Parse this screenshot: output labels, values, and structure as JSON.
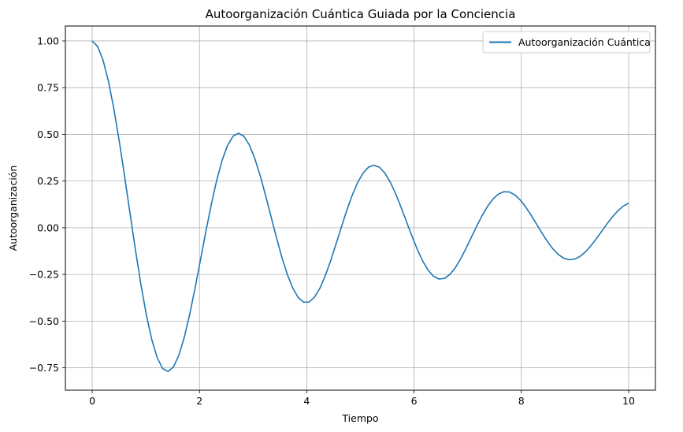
{
  "chart_data": {
    "type": "line",
    "title": "Autoorganización Cuántica Guiada por la Conciencia",
    "xlabel": "Tiempo",
    "ylabel": "Autoorganización",
    "xlim": [
      -0.5,
      10.5
    ],
    "ylim": [
      -0.87,
      1.08
    ],
    "xticks": [
      0,
      2,
      4,
      6,
      8,
      10
    ],
    "xtick_labels": [
      "0",
      "2",
      "4",
      "6",
      "8",
      "10"
    ],
    "yticks": [
      -0.75,
      -0.5,
      -0.25,
      0.0,
      0.25,
      0.5,
      0.75,
      1.0
    ],
    "ytick_labels": [
      "−0.75",
      "−0.50",
      "−0.25",
      "0.00",
      "0.25",
      "0.50",
      "0.75",
      "1.00"
    ],
    "grid": true,
    "legend_position": "top-right",
    "series": [
      {
        "name": "Autoorganización Cuántica",
        "color": "#1f77b4",
        "x": [
          0.0,
          0.101,
          0.202,
          0.303,
          0.404,
          0.505,
          0.606,
          0.707,
          0.808,
          0.909,
          1.01,
          1.111,
          1.212,
          1.313,
          1.414,
          1.515,
          1.616,
          1.717,
          1.818,
          1.919,
          2.02,
          2.121,
          2.222,
          2.323,
          2.424,
          2.525,
          2.626,
          2.727,
          2.828,
          2.929,
          3.03,
          3.131,
          3.232,
          3.333,
          3.434,
          3.535,
          3.636,
          3.737,
          3.838,
          3.939,
          4.04,
          4.141,
          4.242,
          4.343,
          4.444,
          4.545,
          4.646,
          4.747,
          4.848,
          4.949,
          5.051,
          5.152,
          5.253,
          5.354,
          5.455,
          5.556,
          5.657,
          5.758,
          5.859,
          5.96,
          6.061,
          6.162,
          6.263,
          6.364,
          6.465,
          6.566,
          6.667,
          6.768,
          6.869,
          6.97,
          7.071,
          7.172,
          7.273,
          7.374,
          7.475,
          7.576,
          7.677,
          7.778,
          7.879,
          7.98,
          8.081,
          8.182,
          8.283,
          8.384,
          8.485,
          8.586,
          8.687,
          8.788,
          8.889,
          8.99,
          9.091,
          9.192,
          9.293,
          9.394,
          9.495,
          9.596,
          9.697,
          9.798,
          9.899,
          10.0
        ],
        "y": [
          1.0,
          0.9704,
          0.8971,
          0.7837,
          0.6362,
          0.4622,
          0.2711,
          0.0728,
          -0.1225,
          -0.3055,
          -0.467,
          -0.5993,
          -0.6962,
          -0.7537,
          -0.7699,
          -0.7453,
          -0.6825,
          -0.5862,
          -0.4631,
          -0.3213,
          -0.1695,
          -0.0171,
          0.1272,
          0.2561,
          0.3628,
          0.442,
          0.4902,
          0.5059,
          0.4896,
          0.4435,
          0.3716,
          0.2793,
          0.1731,
          0.0604,
          -0.0521,
          -0.1571,
          -0.2487,
          -0.3218,
          -0.3724,
          -0.3982,
          -0.3983,
          -0.3733,
          -0.3256,
          -0.2588,
          -0.1778,
          -0.0881,
          0.0044,
          0.0937,
          0.1746,
          0.2423,
          0.2932,
          0.3246,
          0.3349,
          0.3239,
          0.2929,
          0.2444,
          0.1818,
          0.1095,
          0.0325,
          -0.0443,
          -0.1162,
          -0.1786,
          -0.2275,
          -0.2602,
          -0.2749,
          -0.2714,
          -0.2505,
          -0.2145,
          -0.1664,
          -0.1101,
          -0.0497,
          0.0107,
          0.0673,
          0.1162,
          0.1548,
          0.1808,
          0.193,
          0.1911,
          0.1757,
          0.1484,
          0.1113,
          0.0674,
          0.0197,
          -0.0282,
          -0.0732,
          -0.1122,
          -0.1427,
          -0.1628,
          -0.1714,
          -0.1683,
          -0.1542,
          -0.1301,
          -0.0981,
          -0.0607,
          -0.0204,
          0.0199,
          0.0577,
          0.0901,
          0.1152,
          0.1318
        ]
      }
    ]
  }
}
